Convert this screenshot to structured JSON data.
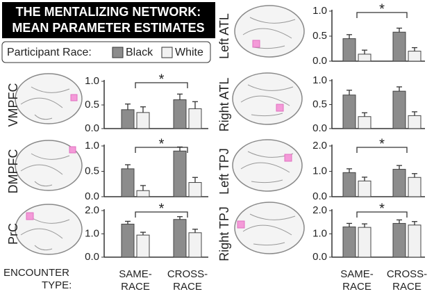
{
  "title": [
    "THE MENTALIZING NETWORK:",
    "MEAN PARAMETER ESTIMATES"
  ],
  "legend": {
    "title": "Participant Race:",
    "entries": [
      {
        "name": "Black",
        "color": "#8c8c8c"
      },
      {
        "name": "White",
        "color": "#f2f2f2"
      }
    ]
  },
  "x_axis": {
    "label": [
      "ENCOUNTER",
      "TYPE:"
    ],
    "categories": [
      [
        "SAME-",
        "RACE"
      ],
      [
        "CROSS-",
        "RACE"
      ]
    ]
  },
  "chart_data": [
    {
      "type": "bar",
      "title": "VMPFC",
      "ylim": [
        0,
        1
      ],
      "yticks": [
        {
          "value": 0,
          "label": "0.0"
        },
        {
          "value": 0.5,
          "label": "0.5"
        },
        {
          "value": 1,
          "label": "1.0"
        }
      ],
      "series": [
        {
          "values": [
            0.4,
            0.61
          ],
          "errors": [
            0.12,
            0.12
          ]
        },
        {
          "values": [
            0.34,
            0.42
          ],
          "errors": [
            0.12,
            0.15
          ]
        }
      ],
      "significance": "*"
    },
    {
      "type": "bar",
      "title": "DMPFC",
      "ylim": [
        0,
        1
      ],
      "yticks": [
        {
          "value": 0,
          "label": "0.0"
        },
        {
          "value": 0.5,
          "label": "0.5"
        },
        {
          "value": 1,
          "label": "1.0"
        }
      ],
      "series": [
        {
          "values": [
            0.55,
            0.9
          ],
          "errors": [
            0.08,
            0.08
          ]
        },
        {
          "values": [
            0.12,
            0.28
          ],
          "errors": [
            0.1,
            0.1
          ]
        }
      ],
      "significance": "*"
    },
    {
      "type": "bar",
      "title": "PrC",
      "ylim": [
        0,
        2
      ],
      "yticks": [
        {
          "value": 0,
          "label": "0.0"
        },
        {
          "value": 1,
          "label": "1.0"
        },
        {
          "value": 2,
          "label": "2.0"
        }
      ],
      "series": [
        {
          "values": [
            1.42,
            1.62
          ],
          "errors": [
            0.12,
            0.12
          ]
        },
        {
          "values": [
            0.95,
            1.05
          ],
          "errors": [
            0.12,
            0.15
          ]
        }
      ],
      "significance": "*"
    },
    {
      "type": "bar",
      "title": "Left ATL",
      "ylim": [
        0,
        1
      ],
      "yticks": [
        {
          "value": 0,
          "label": "0.0"
        },
        {
          "value": 0.5,
          "label": "0.5"
        },
        {
          "value": 1,
          "label": "1.0"
        }
      ],
      "series": [
        {
          "values": [
            0.45,
            0.58
          ],
          "errors": [
            0.08,
            0.08
          ]
        },
        {
          "values": [
            0.14,
            0.2
          ],
          "errors": [
            0.08,
            0.07
          ]
        }
      ],
      "significance": "*"
    },
    {
      "type": "bar",
      "title": "Right ATL",
      "ylim": [
        0,
        1
      ],
      "yticks": [
        {
          "value": 0,
          "label": "0.0"
        },
        {
          "value": 0.5,
          "label": "0.5"
        },
        {
          "value": 1,
          "label": "1.0"
        }
      ],
      "series": [
        {
          "values": [
            0.7,
            0.78
          ],
          "errors": [
            0.1,
            0.09
          ]
        },
        {
          "values": [
            0.25,
            0.27
          ],
          "errors": [
            0.08,
            0.08
          ]
        }
      ]
    },
    {
      "type": "bar",
      "title": "Left TPJ",
      "ylim": [
        0,
        2
      ],
      "yticks": [
        {
          "value": 0,
          "label": "0.0"
        },
        {
          "value": 1,
          "label": "1.0"
        },
        {
          "value": 2,
          "label": "2.0"
        }
      ],
      "series": [
        {
          "values": [
            0.95,
            1.08
          ],
          "errors": [
            0.15,
            0.15
          ]
        },
        {
          "values": [
            0.62,
            0.76
          ],
          "errors": [
            0.15,
            0.15
          ]
        }
      ],
      "significance": "*"
    },
    {
      "type": "bar",
      "title": "Right TPJ",
      "ylim": [
        0,
        2
      ],
      "yticks": [
        {
          "value": 0,
          "label": "0.0"
        },
        {
          "value": 1,
          "label": "1.0"
        },
        {
          "value": 2,
          "label": "2.0"
        }
      ],
      "series": [
        {
          "values": [
            1.3,
            1.45
          ],
          "errors": [
            0.15,
            0.15
          ]
        },
        {
          "values": [
            1.28,
            1.38
          ],
          "errors": [
            0.15,
            0.15
          ]
        }
      ],
      "significance": "*"
    }
  ]
}
